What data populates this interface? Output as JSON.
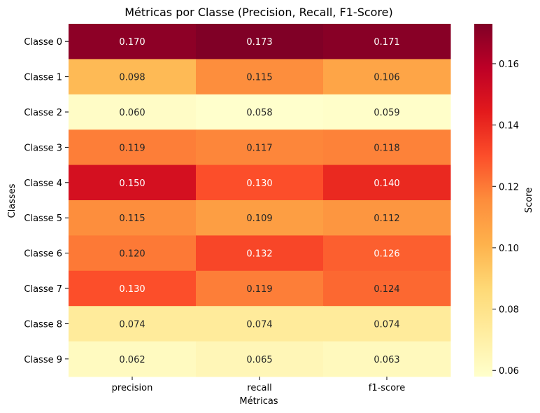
{
  "chart_data": {
    "type": "heatmap",
    "title": "Métricas por Classe (Precision, Recall, F1-Score)",
    "xlabel": "Métricas",
    "ylabel": "Classes",
    "colorbar_label": "Score",
    "colormap": "YlOrRd",
    "columns": [
      "precision",
      "recall",
      "f1-score"
    ],
    "rows": [
      "Classe 0",
      "Classe 1",
      "Classe 2",
      "Classe 3",
      "Classe 4",
      "Classe 5",
      "Classe 6",
      "Classe 7",
      "Classe 8",
      "Classe 9"
    ],
    "values": [
      [
        0.17,
        0.173,
        0.171
      ],
      [
        0.098,
        0.115,
        0.106
      ],
      [
        0.06,
        0.058,
        0.059
      ],
      [
        0.119,
        0.117,
        0.118
      ],
      [
        0.15,
        0.13,
        0.14
      ],
      [
        0.115,
        0.109,
        0.112
      ],
      [
        0.12,
        0.132,
        0.126
      ],
      [
        0.13,
        0.119,
        0.124
      ],
      [
        0.074,
        0.074,
        0.074
      ],
      [
        0.062,
        0.065,
        0.063
      ]
    ],
    "value_labels": [
      [
        "0.170",
        "0.173",
        "0.171"
      ],
      [
        "0.098",
        "0.115",
        "0.106"
      ],
      [
        "0.060",
        "0.058",
        "0.059"
      ],
      [
        "0.119",
        "0.117",
        "0.118"
      ],
      [
        "0.150",
        "0.130",
        "0.140"
      ],
      [
        "0.115",
        "0.109",
        "0.112"
      ],
      [
        "0.120",
        "0.132",
        "0.126"
      ],
      [
        "0.130",
        "0.119",
        "0.124"
      ],
      [
        "0.074",
        "0.074",
        "0.074"
      ],
      [
        "0.062",
        "0.065",
        "0.063"
      ]
    ],
    "vmin": 0.058,
    "vmax": 0.173,
    "colorbar_ticks": [
      0.06,
      0.08,
      0.1,
      0.12,
      0.14,
      0.16
    ],
    "colorbar_tick_labels": [
      "0.06",
      "0.08",
      "0.10",
      "0.12",
      "0.14",
      "0.16"
    ]
  }
}
